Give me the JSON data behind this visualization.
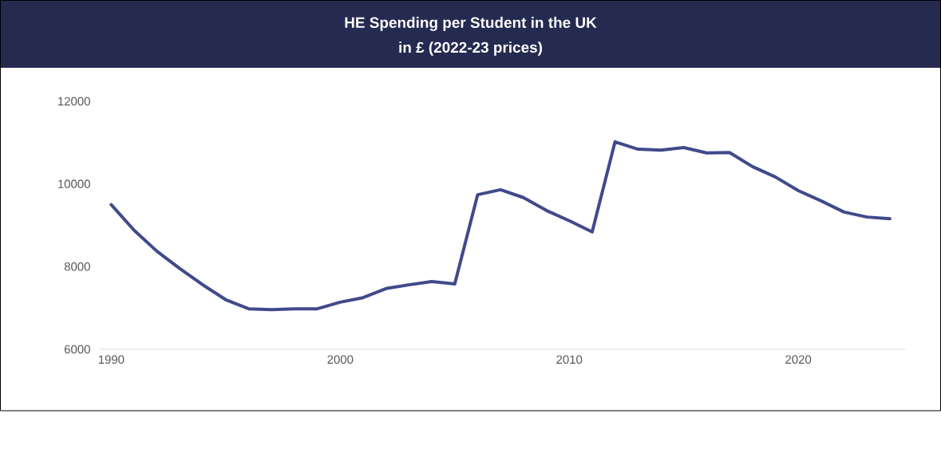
{
  "chart_data": {
    "type": "line",
    "title": "HE Spending per Student in the UK",
    "subtitle": "in £ (2022-23 prices)",
    "x": [
      1990,
      1991,
      1992,
      1993,
      1994,
      1995,
      1996,
      1997,
      1998,
      1999,
      2000,
      2001,
      2002,
      2003,
      2004,
      2005,
      2006,
      2007,
      2008,
      2009,
      2010,
      2011,
      2012,
      2013,
      2014,
      2015,
      2016,
      2017,
      2018,
      2019,
      2020,
      2021,
      2022,
      2023,
      2024
    ],
    "values": [
      9500,
      8880,
      8370,
      7950,
      7560,
      7200,
      6980,
      6960,
      6980,
      6980,
      7140,
      7250,
      7470,
      7560,
      7640,
      7580,
      9740,
      9860,
      9670,
      9360,
      9110,
      8840,
      11020,
      10840,
      10820,
      10880,
      10750,
      10760,
      10420,
      10170,
      9840,
      9590,
      9320,
      9200,
      9160
    ],
    "color": "#404a8a",
    "xlim": [
      1989.5,
      2024.7
    ],
    "xticks": [
      1990,
      2000,
      2010,
      2020
    ],
    "ylim": [
      6000,
      12000
    ],
    "yticks": [
      6000,
      8000,
      10000,
      12000
    ],
    "marker": "none",
    "line_style": "solid"
  }
}
